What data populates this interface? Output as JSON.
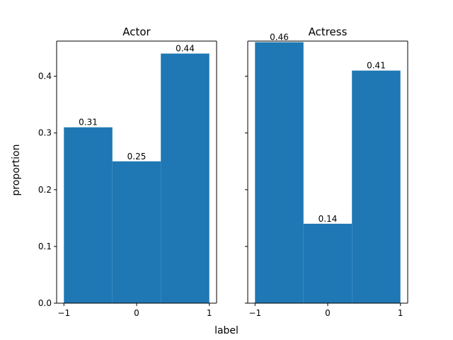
{
  "colors": {
    "bar": "#1f77b4"
  },
  "figure": {
    "xlabel": "label",
    "ylabel": "proportion"
  },
  "chart_data": [
    {
      "type": "bar",
      "title": "Actor",
      "x": [
        -1,
        0,
        1
      ],
      "values": [
        0.31,
        0.25,
        0.44
      ],
      "value_labels": [
        "0.31",
        "0.25",
        "0.44"
      ],
      "bin_edges": [
        -1.0,
        -0.333,
        0.333,
        1.0
      ],
      "xlim": [
        -1.1,
        1.1
      ],
      "ylim": [
        0,
        0.462
      ],
      "xticks": [
        -1,
        0,
        1
      ],
      "xtick_labels": [
        "−1",
        "0",
        "1"
      ],
      "yticks": [
        0.0,
        0.1,
        0.2,
        0.3,
        0.4
      ],
      "ytick_labels": [
        "0.0",
        "0.1",
        "0.2",
        "0.3",
        "0.4"
      ],
      "grid": false
    },
    {
      "type": "bar",
      "title": "Actress",
      "x": [
        -1,
        0,
        1
      ],
      "values": [
        0.46,
        0.14,
        0.41
      ],
      "value_labels": [
        "0.46",
        "0.14",
        "0.41"
      ],
      "bin_edges": [
        -1.0,
        -0.333,
        0.333,
        1.0
      ],
      "xlim": [
        -1.1,
        1.1
      ],
      "ylim": [
        0,
        0.462
      ],
      "xticks": [
        -1,
        0,
        1
      ],
      "xtick_labels": [
        "−1",
        "0",
        "1"
      ],
      "yticks": [
        0.0,
        0.1,
        0.2,
        0.3,
        0.4
      ],
      "ytick_labels": [],
      "grid": false,
      "sharey": true
    }
  ]
}
